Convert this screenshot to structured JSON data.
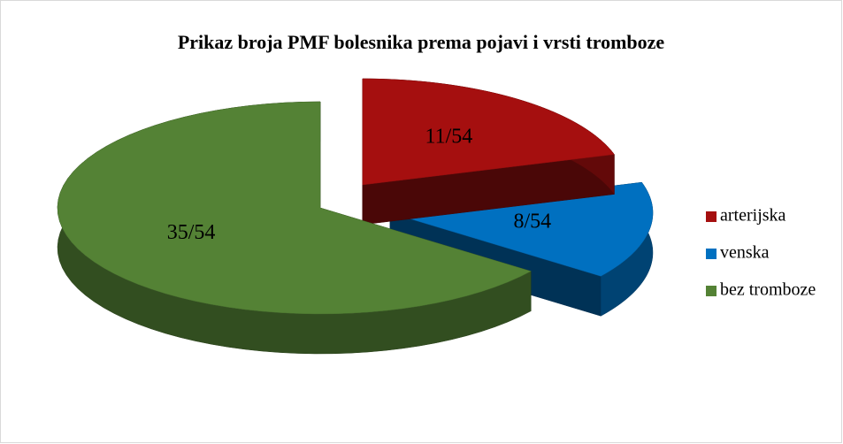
{
  "chart_data": {
    "type": "pie3d",
    "title": "Prikaz broja PMF bolesnika prema pojavi i vrsti tromboze",
    "categories": [
      "arterijska",
      "venska",
      "bez tromboze"
    ],
    "values": [
      11,
      8,
      35
    ],
    "value_labels": [
      "11/54",
      "8/54",
      "35/54"
    ],
    "colors": [
      "#a50f0f",
      "#0070c0",
      "#548235"
    ],
    "legend": "right"
  }
}
